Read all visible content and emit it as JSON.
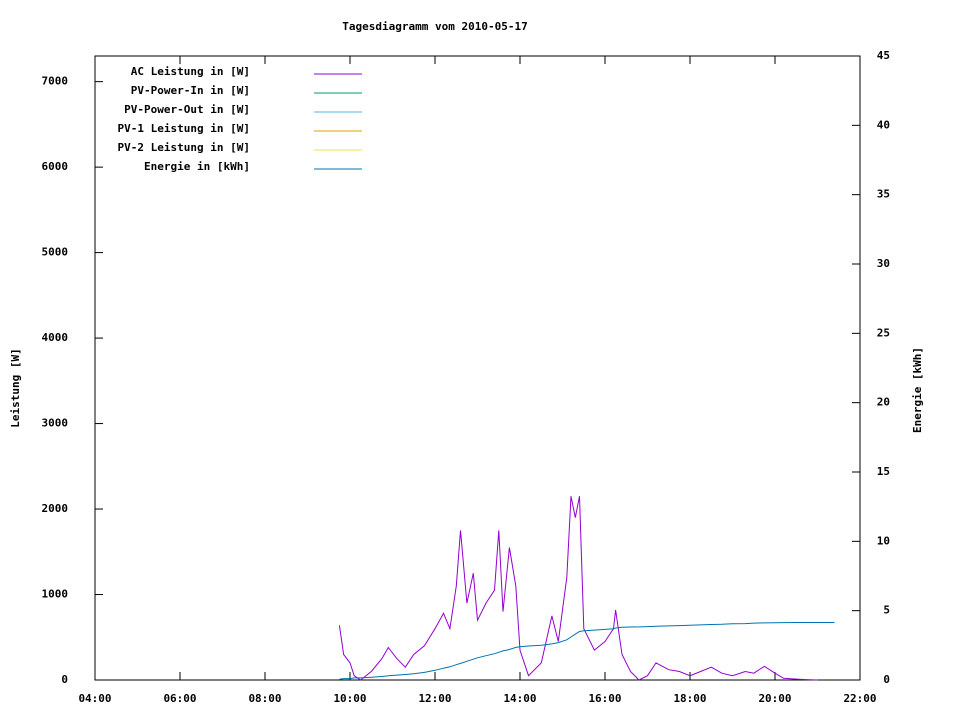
{
  "chart_data": {
    "type": "line",
    "title": "Tagesdiagramm vom 2010-05-17",
    "y_label": "Leistung [W]",
    "y2_label": "Energie [kWh]",
    "legend": "top-left",
    "xlim": [
      4,
      22
    ],
    "xticks": [
      {
        "value": 4,
        "label": "04:00"
      },
      {
        "value": 6,
        "label": "06:00"
      },
      {
        "value": 8,
        "label": "08:00"
      },
      {
        "value": 10,
        "label": "10:00"
      },
      {
        "value": 12,
        "label": "12:00"
      },
      {
        "value": 14,
        "label": "14:00"
      },
      {
        "value": 16,
        "label": "16:00"
      },
      {
        "value": 18,
        "label": "18:00"
      },
      {
        "value": 20,
        "label": "20:00"
      },
      {
        "value": 22,
        "label": "22:00"
      }
    ],
    "ylim": [
      0,
      7300
    ],
    "yticks": [
      0,
      1000,
      2000,
      3000,
      4000,
      5000,
      6000,
      7000
    ],
    "y2lim": [
      0,
      45
    ],
    "y2ticks": [
      0,
      5,
      10,
      15,
      20,
      25,
      30,
      35,
      40,
      45
    ],
    "x": [
      9.75,
      9.85,
      10.0,
      10.1,
      10.25,
      10.5,
      10.75,
      10.9,
      11.1,
      11.3,
      11.5,
      11.75,
      12.0,
      12.2,
      12.35,
      12.5,
      12.6,
      12.75,
      12.9,
      13.0,
      13.2,
      13.4,
      13.5,
      13.6,
      13.75,
      13.9,
      14.0,
      14.2,
      14.5,
      14.75,
      14.9,
      15.1,
      15.2,
      15.3,
      15.4,
      15.5,
      15.75,
      16.0,
      16.2,
      16.25,
      16.4,
      16.6,
      16.8,
      17.0,
      17.2,
      17.5,
      17.75,
      18.0,
      18.25,
      18.5,
      18.75,
      19.0,
      19.3,
      19.5,
      19.75,
      20.0,
      20.2,
      20.5,
      20.75,
      21.0,
      21.4
    ],
    "series": [
      {
        "name": "AC Leistung in [W]",
        "color": "#9400d3",
        "values": [
          640,
          300,
          200,
          50,
          0,
          100,
          250,
          380,
          250,
          150,
          300,
          400,
          600,
          780,
          600,
          1100,
          1750,
          900,
          1250,
          700,
          900,
          1050,
          1750,
          800,
          1550,
          1100,
          350,
          50,
          200,
          750,
          450,
          1200,
          2150,
          1900,
          2150,
          600,
          350,
          450,
          600,
          820,
          300,
          100,
          0,
          50,
          200,
          120,
          100,
          50,
          100,
          150,
          80,
          50,
          100,
          80,
          160,
          80,
          20,
          10,
          5,
          0,
          null
        ]
      },
      {
        "name": "PV-Power-In in [W]",
        "color": "#009e73",
        "values": [
          null,
          null,
          null,
          null,
          null,
          null,
          null,
          null,
          null,
          null,
          null,
          null,
          null,
          null,
          null,
          null,
          null,
          null,
          null,
          null,
          null,
          null,
          null,
          null,
          null,
          null,
          null,
          null,
          null,
          null,
          null,
          null,
          null,
          null,
          null,
          null,
          null,
          null,
          null,
          null,
          null,
          null,
          null,
          null,
          null,
          null,
          null,
          null,
          null,
          null,
          null,
          null,
          null,
          null,
          null,
          null,
          null,
          null,
          null,
          null,
          null
        ]
      },
      {
        "name": "PV-Power-Out in [W]",
        "color": "#56b4e9",
        "values": [
          null,
          null,
          null,
          null,
          null,
          null,
          null,
          null,
          null,
          null,
          null,
          null,
          null,
          null,
          null,
          null,
          null,
          null,
          null,
          null,
          null,
          null,
          null,
          null,
          null,
          null,
          null,
          null,
          null,
          null,
          null,
          null,
          null,
          null,
          null,
          null,
          null,
          null,
          null,
          null,
          null,
          null,
          null,
          null,
          null,
          null,
          null,
          null,
          null,
          null,
          null,
          null,
          null,
          null,
          null,
          null,
          null,
          null,
          null,
          null,
          null
        ]
      },
      {
        "name": "PV-1 Leistung in [W]",
        "color": "#e69f00",
        "values": [
          null,
          null,
          null,
          null,
          null,
          null,
          null,
          null,
          null,
          null,
          null,
          null,
          null,
          null,
          null,
          null,
          null,
          null,
          null,
          null,
          null,
          null,
          null,
          null,
          null,
          null,
          null,
          null,
          null,
          null,
          null,
          null,
          null,
          null,
          null,
          null,
          null,
          null,
          null,
          null,
          null,
          null,
          null,
          null,
          null,
          null,
          null,
          null,
          null,
          null,
          null,
          null,
          null,
          null,
          null,
          null,
          null,
          null,
          null,
          null,
          null
        ]
      },
      {
        "name": "PV-2 Leistung in [W]",
        "color": "#f0e442",
        "values": [
          null,
          null,
          null,
          null,
          null,
          null,
          null,
          null,
          null,
          null,
          null,
          null,
          null,
          null,
          null,
          null,
          null,
          null,
          null,
          null,
          null,
          null,
          null,
          null,
          null,
          null,
          null,
          null,
          null,
          null,
          null,
          null,
          null,
          null,
          null,
          null,
          null,
          null,
          null,
          null,
          null,
          null,
          null,
          null,
          null,
          null,
          null,
          null,
          null,
          null,
          null,
          null,
          null,
          null,
          null,
          null,
          null,
          null,
          null,
          null,
          null
        ]
      },
      {
        "name": "Energie in [kWh]",
        "color": "#0072b2",
        "axis": "y2",
        "values": [
          0.05,
          0.1,
          0.1,
          0.15,
          0.15,
          0.2,
          0.25,
          0.3,
          0.35,
          0.4,
          0.45,
          0.55,
          0.7,
          0.85,
          0.95,
          1.1,
          1.2,
          1.35,
          1.5,
          1.6,
          1.75,
          1.9,
          2.0,
          2.1,
          2.2,
          2.35,
          2.4,
          2.45,
          2.5,
          2.6,
          2.7,
          2.9,
          3.1,
          3.3,
          3.5,
          3.55,
          3.6,
          3.65,
          3.7,
          3.75,
          3.8,
          3.82,
          3.83,
          3.85,
          3.87,
          3.9,
          3.92,
          3.95,
          3.97,
          4.0,
          4.02,
          4.05,
          4.07,
          4.1,
          4.12,
          4.13,
          4.14,
          4.15,
          4.15,
          4.15,
          4.15
        ]
      }
    ]
  }
}
